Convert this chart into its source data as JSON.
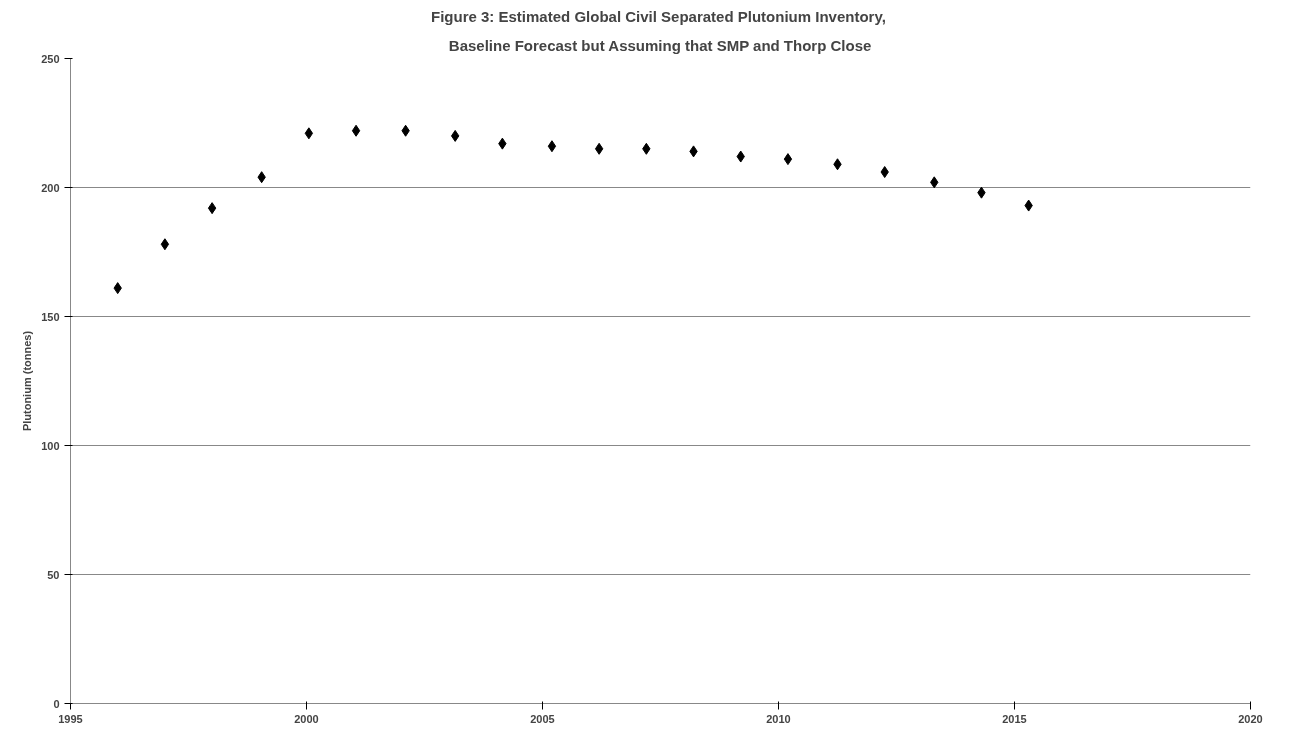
{
  "chart_data": {
    "type": "scatter",
    "title": "Figure 3:  Estimated Global Civil Separated Plutonium Inventory,",
    "subtitle": "Baseline Forecast but Assuming that SMP and Thorp Close",
    "ylabel": "Plutonium (tonnes)",
    "x": [
      1996.0,
      1997.0,
      1998.0,
      1999.05,
      2000.05,
      2001.05,
      2002.1,
      2003.15,
      2004.15,
      2005.2,
      2006.2,
      2007.2,
      2008.2,
      2009.2,
      2010.2,
      2011.25,
      2012.25,
      2013.3,
      2014.3,
      2015.3
    ],
    "series": [
      {
        "color": "#000000",
        "values": [
          161,
          178,
          192,
          204,
          221,
          222,
          222,
          220,
          217,
          216,
          215,
          215,
          214,
          212,
          211,
          209,
          206,
          202,
          198,
          193
        ]
      }
    ],
    "xlim": [
      1995,
      2020
    ],
    "xticks": [
      1995,
      2000,
      2005,
      2010,
      2015,
      2020
    ],
    "ylim": [
      0,
      250
    ],
    "yticks": [
      0,
      50,
      100,
      150,
      200,
      250
    ],
    "grid": "y",
    "marker": "diamond"
  }
}
